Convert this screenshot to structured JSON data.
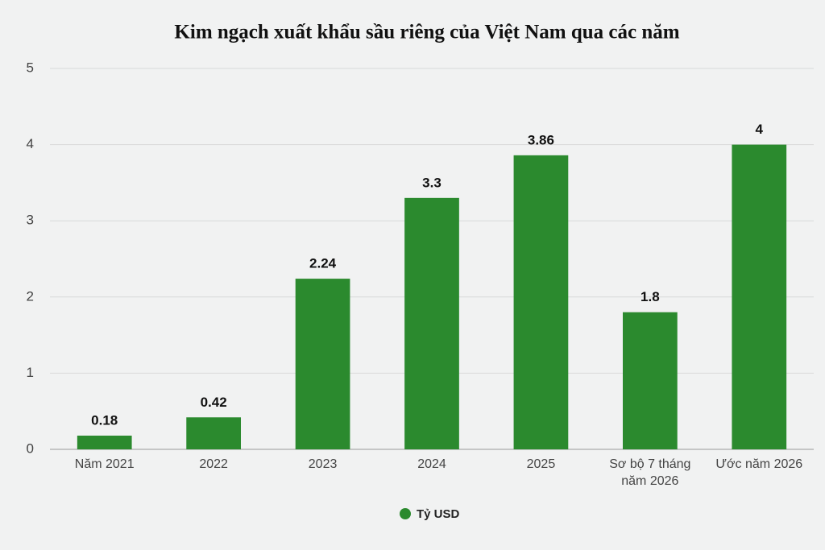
{
  "chart_data": {
    "type": "bar",
    "title": "Kim ngạch xuất khẩu sầu riêng của Việt Nam qua các năm",
    "categories": [
      "Năm 2021",
      "2022",
      "2023",
      "2024",
      "2025",
      "Sơ bộ 7 tháng năm 2026",
      "Ước năm 2026"
    ],
    "series": [
      {
        "name": "Tỷ USD",
        "color": "#2b8a2e",
        "values": [
          0.18,
          0.42,
          2.24,
          3.3,
          3.86,
          1.8,
          4
        ]
      }
    ],
    "ylim": [
      0,
      5
    ],
    "yticks": [
      0,
      1,
      2,
      3,
      4,
      5
    ],
    "grid": true,
    "legend": "bottom"
  }
}
